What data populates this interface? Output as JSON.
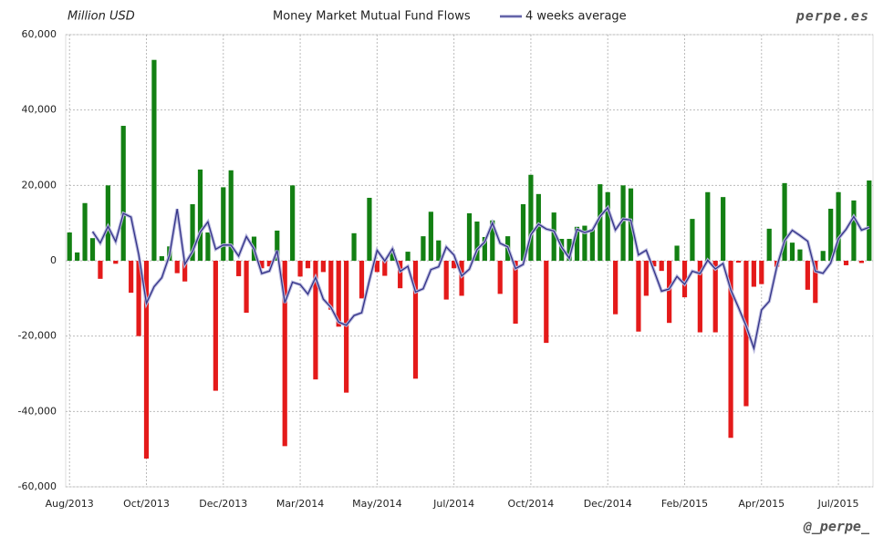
{
  "chart_data": {
    "type": "bar",
    "title": "Money Market Mutual Fund Flows",
    "y_label": "Million USD",
    "source": "perpe.es",
    "credit": "@_perpe_",
    "categories": [
      "Aug/2013",
      null,
      null,
      null,
      null,
      null,
      null,
      null,
      null,
      null,
      "Oct/2013",
      null,
      null,
      null,
      null,
      null,
      null,
      null,
      null,
      null,
      "Dec/2013",
      null,
      null,
      null,
      null,
      null,
      null,
      null,
      null,
      null,
      "Mar/2014",
      null,
      null,
      null,
      null,
      null,
      null,
      null,
      null,
      null,
      "May/2014",
      null,
      null,
      null,
      null,
      null,
      null,
      null,
      null,
      null,
      "Jul/2014",
      null,
      null,
      null,
      null,
      null,
      null,
      null,
      null,
      null,
      "Oct/2014",
      null,
      null,
      null,
      null,
      null,
      null,
      null,
      null,
      null,
      "Dec/2014",
      null,
      null,
      null,
      null,
      null,
      null,
      null,
      null,
      null,
      "Feb/2015",
      null,
      null,
      null,
      null,
      null,
      null,
      null,
      null,
      null,
      "Apr/2015",
      null,
      null,
      null,
      null,
      null,
      null,
      null,
      null,
      null,
      "Jul/2015",
      null,
      null,
      null,
      null
    ],
    "values": [
      7500,
      2200,
      15300,
      6000,
      -4800,
      20000,
      -800,
      35800,
      -8500,
      -20000,
      -52500,
      53300,
      1200,
      3800,
      -3300,
      -5500,
      15000,
      24200,
      7500,
      -34500,
      19500,
      24000,
      -4100,
      -13800,
      6400,
      -2000,
      -1500,
      8000,
      -49200,
      20000,
      -4200,
      -2000,
      -31500,
      -3000,
      -13000,
      -17500,
      -35000,
      7300,
      -10000,
      16700,
      -3000,
      -4000,
      3000,
      -7300,
      2400,
      -31300,
      6500,
      13000,
      5400,
      -10300,
      -2000,
      -9300,
      12600,
      10400,
      6300,
      10700,
      -8800,
      6500,
      -16700,
      15000,
      22800,
      17700,
      -21800,
      12800,
      5800,
      5800,
      9000,
      9300,
      8400,
      20300,
      18200,
      -14200,
      20000,
      19200,
      -18800,
      -9300,
      -1500,
      -2700,
      -16500,
      4000,
      -9700,
      11100,
      -19000,
      18200,
      -19000,
      16900,
      -47000,
      -500,
      -38600,
      -6900,
      -6200,
      8500,
      -1600,
      20600,
      4800,
      3000,
      -7700,
      -11200,
      2600,
      13800,
      18200,
      -1200,
      16000,
      -600,
      21300
    ],
    "color": "#138013",
    "negative_color": "#e41a1a",
    "line": {
      "name": "4 weeks average",
      "color": "#333388",
      "values": [
        null,
        null,
        null,
        7750,
        4700,
        9100,
        5100,
        12550,
        11600,
        1600,
        -11300,
        -6900,
        -4500,
        1450,
        13750,
        -950,
        2500,
        7600,
        10300,
        3050,
        4180,
        4130,
        1230,
        6400,
        3130,
        -3380,
        -2730,
        2730,
        -11180,
        -5680,
        -6350,
        -8850,
        -4430,
        -10180,
        -12380,
        -16250,
        -17130,
        -14550,
        -13800,
        -5250,
        2750,
        -80,
        3180,
        -2830,
        -1480,
        -8300,
        -7430,
        -2350,
        -1600,
        3650,
        1530,
        -4050,
        -2250,
        2930,
        5000,
        10000,
        4650,
        3680,
        -2080,
        -1000,
        6900,
        9700,
        8430,
        7880,
        3630,
        650,
        8350,
        7480,
        8130,
        11750,
        14050,
        8180,
        11080,
        10800,
        1550,
        2780,
        -2600,
        -8080,
        -7500,
        -4180,
        -6230,
        -2780,
        -3400,
        150,
        -2180,
        -730,
        -7730,
        -12400,
        -17300,
        -23250,
        -13050,
        -10800,
        -1550,
        5330,
        8080,
        6700,
        5180,
        -2780,
        -3330,
        -630,
        5850,
        8350,
        11700,
        8100,
        8880
      ]
    },
    "ylim": [
      -60000,
      60000
    ],
    "yticks": [
      {
        "value": -60000,
        "label": "-60,000"
      },
      {
        "value": -40000,
        "label": "-40,000"
      },
      {
        "value": -20000,
        "label": "-20,000"
      },
      0,
      {
        "value": 20000,
        "label": "20,000"
      },
      {
        "value": 40000,
        "label": "40,000"
      },
      {
        "value": 60000,
        "label": "60,000"
      }
    ],
    "grid": true
  }
}
